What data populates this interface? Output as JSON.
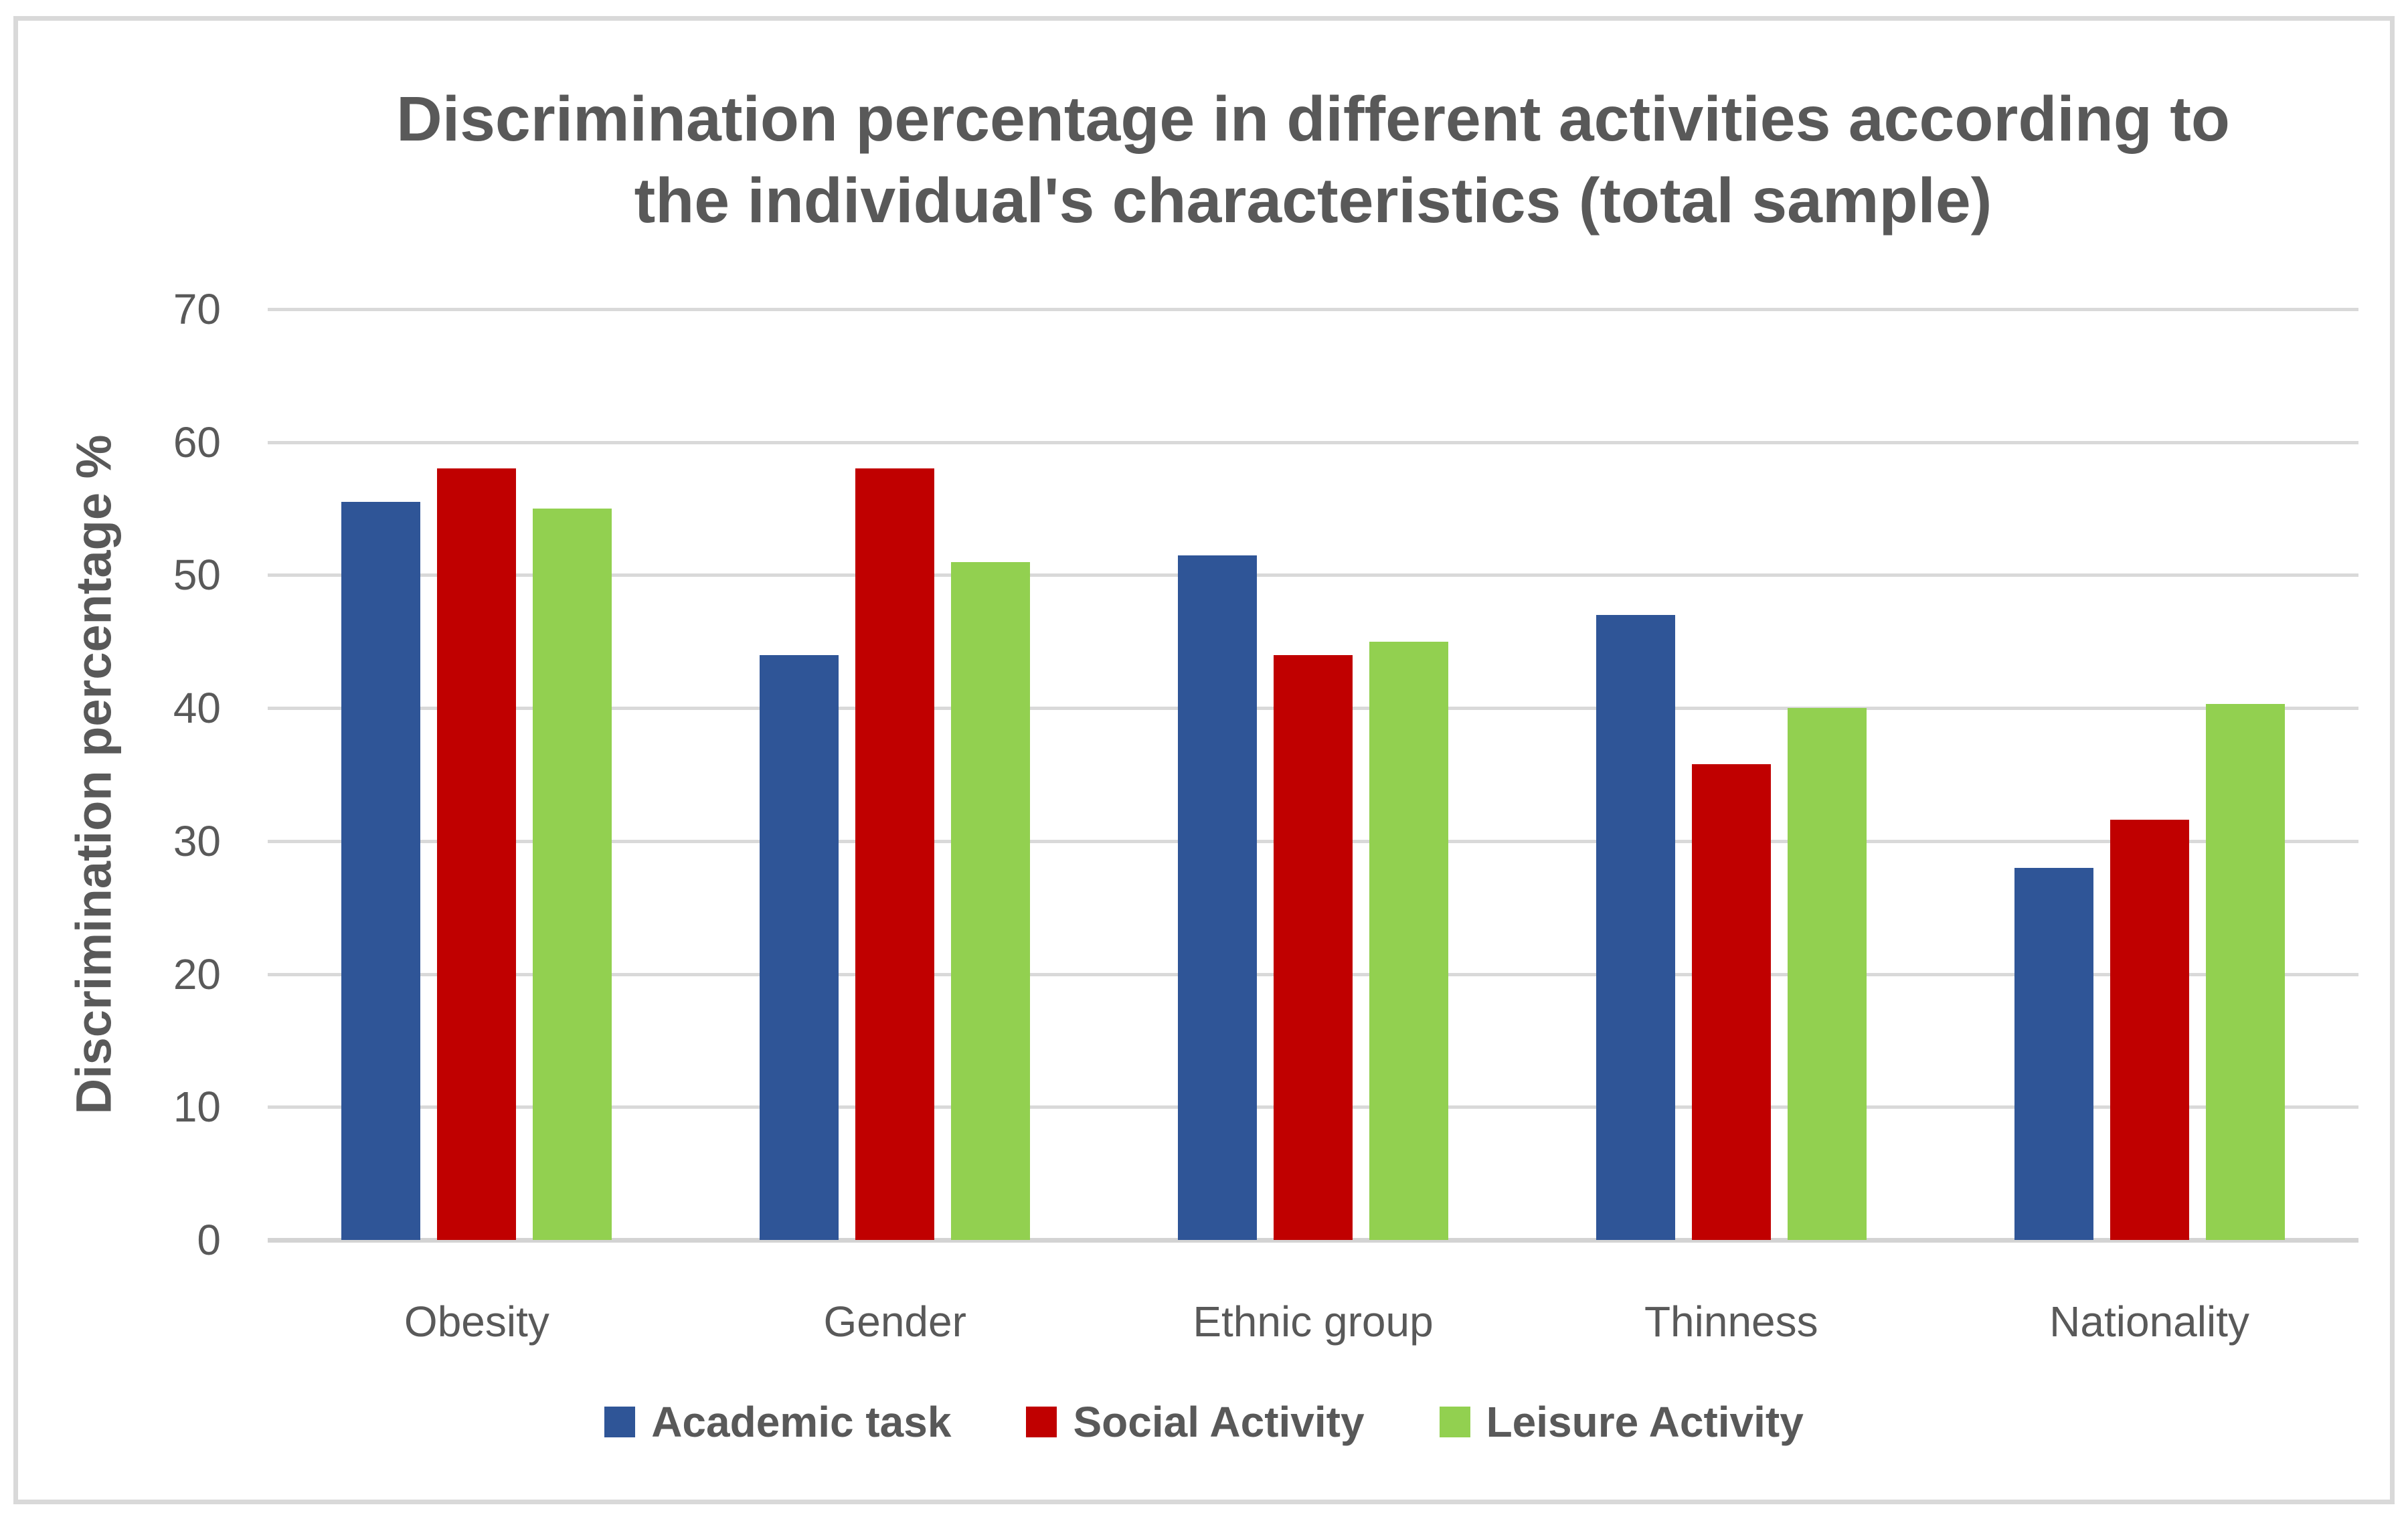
{
  "chart_data": {
    "type": "bar",
    "title": "Discrimination percentage in different activities according to the individual's characteristics (total sample)",
    "title_lines": [
      "Discrimination percentage in different activities according to",
      "the individual's characteristics (total sample)"
    ],
    "ylabel": "Discrimination percentage %",
    "xlabel": "",
    "categories": [
      "Obesity",
      "Gender",
      "Ethnic group",
      "Thinness",
      "Nationality"
    ],
    "series": [
      {
        "name": "Academic task",
        "color": "#2F5597",
        "values": [
          55.5,
          44.0,
          51.5,
          47.0,
          28.0
        ]
      },
      {
        "name": "Social Activity",
        "color": "#C00000",
        "values": [
          58.0,
          58.0,
          44.0,
          35.8,
          31.6
        ]
      },
      {
        "name": "Leisure Activity",
        "color": "#92D050",
        "values": [
          55.0,
          51.0,
          45.0,
          40.0,
          40.3
        ]
      }
    ],
    "ylim": [
      0,
      70
    ],
    "yticks": [
      70,
      60,
      50,
      40,
      30,
      20,
      10,
      0
    ],
    "grid": true,
    "legend_position": "bottom"
  },
  "colors": {
    "text": "#595959",
    "gridline": "#D9D9D9",
    "axis_line": "#D3D3D3",
    "frame_border": "#D9D9D9",
    "background": "#FFFFFF"
  }
}
